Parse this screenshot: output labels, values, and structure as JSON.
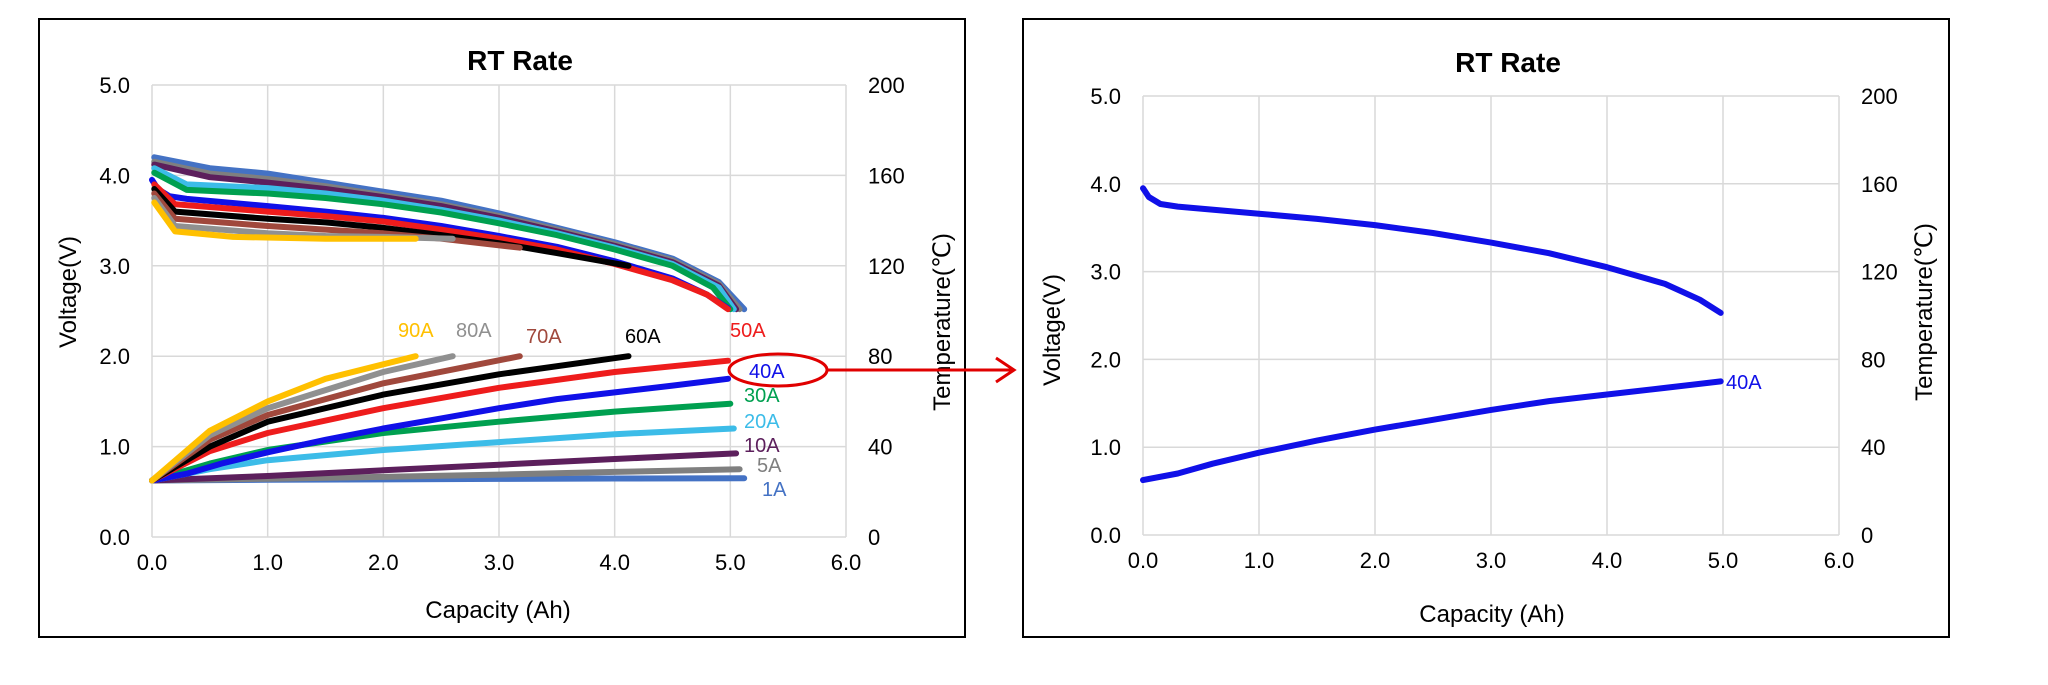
{
  "chart_data": [
    {
      "type": "line",
      "title": "RT Rate",
      "xlabel": "Capacity (Ah)",
      "ylabel": "Voltage(V)",
      "y2label": "Temperature(℃)",
      "xlim": [
        0,
        6
      ],
      "ylim": [
        0,
        5
      ],
      "y2lim": [
        0,
        200
      ],
      "x_ticks": [
        "0.0",
        "1.0",
        "2.0",
        "3.0",
        "4.0",
        "5.0",
        "6.0"
      ],
      "y_ticks": [
        "0.0",
        "1.0",
        "2.0",
        "3.0",
        "4.0",
        "5.0"
      ],
      "y2_ticks": [
        "0",
        "40",
        "80",
        "120",
        "160",
        "200"
      ],
      "grid": true,
      "series": [
        {
          "name": "1A",
          "color": "#4472c4",
          "end_capacity": 5.12,
          "voltage": [
            [
              0.02,
              4.2
            ],
            [
              0.5,
              4.08
            ],
            [
              1.0,
              4.02
            ],
            [
              1.5,
              3.92
            ],
            [
              2.0,
              3.82
            ],
            [
              2.5,
              3.72
            ],
            [
              3.0,
              3.58
            ],
            [
              3.5,
              3.42
            ],
            [
              4.0,
              3.26
            ],
            [
              4.5,
              3.08
            ],
            [
              4.9,
              2.82
            ],
            [
              5.12,
              2.52
            ]
          ],
          "temperature": [
            [
              0,
              25
            ],
            [
              1,
              25.3
            ],
            [
              2,
              25.5
            ],
            [
              3,
              25.7
            ],
            [
              4,
              25.9
            ],
            [
              5.12,
              26
            ]
          ]
        },
        {
          "name": "5A",
          "color": "#7f7f7f",
          "end_capacity": 5.08,
          "voltage": [
            [
              0.02,
              4.15
            ],
            [
              0.5,
              4.02
            ],
            [
              1.0,
              3.96
            ],
            [
              1.5,
              3.88
            ],
            [
              2.0,
              3.78
            ],
            [
              2.5,
              3.68
            ],
            [
              3.0,
              3.55
            ],
            [
              3.5,
              3.4
            ],
            [
              4.0,
              3.24
            ],
            [
              4.5,
              3.06
            ],
            [
              4.9,
              2.8
            ],
            [
              5.08,
              2.52
            ]
          ],
          "temperature": [
            [
              0,
              25
            ],
            [
              1,
              25.8
            ],
            [
              2,
              26.6
            ],
            [
              3,
              27.6
            ],
            [
              4,
              28.8
            ],
            [
              5.08,
              30
            ]
          ]
        },
        {
          "name": "10A",
          "color": "#5c1f5c",
          "end_capacity": 5.05,
          "voltage": [
            [
              0.02,
              4.12
            ],
            [
              0.5,
              3.98
            ],
            [
              1.0,
              3.92
            ],
            [
              1.5,
              3.85
            ],
            [
              2.0,
              3.76
            ],
            [
              2.5,
              3.66
            ],
            [
              3.0,
              3.53
            ],
            [
              3.5,
              3.38
            ],
            [
              4.0,
              3.22
            ],
            [
              4.5,
              3.04
            ],
            [
              4.9,
              2.78
            ],
            [
              5.05,
              2.52
            ]
          ],
          "temperature": [
            [
              0,
              25
            ],
            [
              1,
              27
            ],
            [
              2,
              29.5
            ],
            [
              3,
              32
            ],
            [
              4,
              34.5
            ],
            [
              5.05,
              37
            ]
          ]
        },
        {
          "name": "20A",
          "color": "#3cbce8",
          "end_capacity": 5.03,
          "voltage": [
            [
              0.02,
              4.08
            ],
            [
              0.3,
              3.9
            ],
            [
              1.0,
              3.86
            ],
            [
              1.5,
              3.8
            ],
            [
              2.0,
              3.72
            ],
            [
              2.5,
              3.62
            ],
            [
              3.0,
              3.5
            ],
            [
              3.5,
              3.36
            ],
            [
              4.0,
              3.2
            ],
            [
              4.5,
              3.02
            ],
            [
              4.9,
              2.76
            ],
            [
              5.03,
              2.52
            ]
          ],
          "temperature": [
            [
              0,
              25
            ],
            [
              0.5,
              30
            ],
            [
              1,
              34
            ],
            [
              2,
              38.5
            ],
            [
              3,
              42
            ],
            [
              4,
              45.5
            ],
            [
              5.03,
              48
            ]
          ]
        },
        {
          "name": "30A",
          "color": "#00a050",
          "end_capacity": 5.0,
          "voltage": [
            [
              0.02,
              4.03
            ],
            [
              0.3,
              3.84
            ],
            [
              1.0,
              3.8
            ],
            [
              1.5,
              3.75
            ],
            [
              2.0,
              3.68
            ],
            [
              2.5,
              3.59
            ],
            [
              3.0,
              3.47
            ],
            [
              3.5,
              3.34
            ],
            [
              4.0,
              3.18
            ],
            [
              4.5,
              3.0
            ],
            [
              4.85,
              2.76
            ],
            [
              5.0,
              2.52
            ]
          ],
          "temperature": [
            [
              0,
              25
            ],
            [
              0.5,
              32.5
            ],
            [
              1,
              38.5
            ],
            [
              2,
              46
            ],
            [
              3,
              51
            ],
            [
              4,
              55.5
            ],
            [
              5.0,
              59
            ]
          ]
        },
        {
          "name": "40A",
          "color": "#1010e8",
          "end_capacity": 4.98,
          "voltage": [
            [
              0.0,
              3.95
            ],
            [
              0.05,
              3.85
            ],
            [
              0.15,
              3.77
            ],
            [
              0.3,
              3.74
            ],
            [
              1.0,
              3.66
            ],
            [
              1.5,
              3.6
            ],
            [
              2.0,
              3.53
            ],
            [
              2.5,
              3.44
            ],
            [
              3.0,
              3.33
            ],
            [
              3.5,
              3.21
            ],
            [
              4.0,
              3.05
            ],
            [
              4.5,
              2.86
            ],
            [
              4.8,
              2.68
            ],
            [
              4.98,
              2.53
            ]
          ],
          "temperature": [
            [
              0,
              25
            ],
            [
              0.3,
              28
            ],
            [
              0.6,
              32.5
            ],
            [
              1,
              37.5
            ],
            [
              1.5,
              43
            ],
            [
              2,
              48
            ],
            [
              2.5,
              52.5
            ],
            [
              3,
              57
            ],
            [
              3.5,
              61
            ],
            [
              4,
              64
            ],
            [
              4.5,
              67
            ],
            [
              4.98,
              70
            ]
          ]
        },
        {
          "name": "50A",
          "color": "#ee1c1c",
          "end_capacity": 4.98,
          "voltage": [
            [
              0.02,
              3.9
            ],
            [
              0.2,
              3.68
            ],
            [
              1.0,
              3.6
            ],
            [
              1.5,
              3.55
            ],
            [
              2.0,
              3.49
            ],
            [
              2.5,
              3.4
            ],
            [
              3.0,
              3.3
            ],
            [
              3.5,
              3.18
            ],
            [
              4.0,
              3.02
            ],
            [
              4.5,
              2.84
            ],
            [
              4.8,
              2.68
            ],
            [
              4.98,
              2.52
            ]
          ],
          "temperature": [
            [
              0,
              25
            ],
            [
              0.5,
              38
            ],
            [
              1,
              46
            ],
            [
              2,
              57
            ],
            [
              3,
              66
            ],
            [
              4,
              73
            ],
            [
              4.98,
              78
            ]
          ]
        },
        {
          "name": "60A",
          "color": "#000000",
          "end_capacity": 4.12,
          "voltage": [
            [
              0.02,
              3.85
            ],
            [
              0.2,
              3.6
            ],
            [
              1.0,
              3.52
            ],
            [
              1.5,
              3.48
            ],
            [
              2.0,
              3.42
            ],
            [
              2.5,
              3.34
            ],
            [
              3.0,
              3.25
            ],
            [
              3.5,
              3.14
            ],
            [
              4.12,
              3.0
            ]
          ],
          "temperature": [
            [
              0,
              25
            ],
            [
              0.5,
              40
            ],
            [
              1,
              51
            ],
            [
              2,
              63
            ],
            [
              3,
              72
            ],
            [
              4.12,
              80
            ]
          ]
        },
        {
          "name": "70A",
          "color": "#a0483c",
          "end_capacity": 3.18,
          "voltage": [
            [
              0.02,
              3.8
            ],
            [
              0.2,
              3.52
            ],
            [
              1.0,
              3.44
            ],
            [
              1.5,
              3.4
            ],
            [
              2.0,
              3.36
            ],
            [
              2.5,
              3.3
            ],
            [
              3.18,
              3.2
            ]
          ],
          "temperature": [
            [
              0,
              25
            ],
            [
              0.5,
              43
            ],
            [
              1,
              54
            ],
            [
              2,
              68
            ],
            [
              3.18,
              80
            ]
          ]
        },
        {
          "name": "80A",
          "color": "#909090",
          "end_capacity": 2.6,
          "voltage": [
            [
              0.02,
              3.75
            ],
            [
              0.2,
              3.44
            ],
            [
              1.0,
              3.36
            ],
            [
              1.5,
              3.33
            ],
            [
              2.0,
              3.32
            ],
            [
              2.6,
              3.3
            ]
          ],
          "temperature": [
            [
              0,
              25
            ],
            [
              0.5,
              45
            ],
            [
              1,
              57
            ],
            [
              2,
              73
            ],
            [
              2.6,
              80
            ]
          ]
        },
        {
          "name": "90A",
          "color": "#ffc000",
          "end_capacity": 2.28,
          "voltage": [
            [
              0.02,
              3.7
            ],
            [
              0.2,
              3.38
            ],
            [
              0.7,
              3.32
            ],
            [
              1.5,
              3.3
            ],
            [
              2.28,
              3.3
            ]
          ],
          "temperature": [
            [
              0,
              25
            ],
            [
              0.5,
              47
            ],
            [
              1,
              60
            ],
            [
              1.5,
              70
            ],
            [
              2.28,
              80
            ]
          ]
        }
      ],
      "highlight": {
        "series": "40A"
      }
    },
    {
      "type": "line",
      "title": "RT Rate",
      "xlabel": "Capacity (Ah)",
      "ylabel": "Voltage(V)",
      "y2label": "Temperature(℃)",
      "xlim": [
        0,
        6
      ],
      "ylim": [
        0,
        5
      ],
      "y2lim": [
        0,
        200
      ],
      "x_ticks": [
        "0.0",
        "1.0",
        "2.0",
        "3.0",
        "4.0",
        "5.0",
        "6.0"
      ],
      "y_ticks": [
        "0.0",
        "1.0",
        "2.0",
        "3.0",
        "4.0",
        "5.0"
      ],
      "y2_ticks": [
        "0",
        "40",
        "80",
        "120",
        "160",
        "200"
      ],
      "grid": true,
      "series": [
        {
          "name": "40A",
          "color": "#1010e8",
          "end_capacity": 4.98,
          "voltage": [
            [
              0.0,
              3.95
            ],
            [
              0.05,
              3.85
            ],
            [
              0.15,
              3.77
            ],
            [
              0.3,
              3.74
            ],
            [
              1.0,
              3.66
            ],
            [
              1.5,
              3.6
            ],
            [
              2.0,
              3.53
            ],
            [
              2.5,
              3.44
            ],
            [
              3.0,
              3.33
            ],
            [
              3.5,
              3.21
            ],
            [
              4.0,
              3.05
            ],
            [
              4.5,
              2.86
            ],
            [
              4.8,
              2.68
            ],
            [
              4.98,
              2.53
            ]
          ],
          "temperature": [
            [
              0,
              25
            ],
            [
              0.3,
              28
            ],
            [
              0.6,
              32.5
            ],
            [
              1,
              37.5
            ],
            [
              1.5,
              43
            ],
            [
              2,
              48
            ],
            [
              2.5,
              52.5
            ],
            [
              3,
              57
            ],
            [
              3.5,
              61
            ],
            [
              4,
              64
            ],
            [
              4.5,
              67
            ],
            [
              4.98,
              70
            ]
          ]
        }
      ]
    }
  ]
}
